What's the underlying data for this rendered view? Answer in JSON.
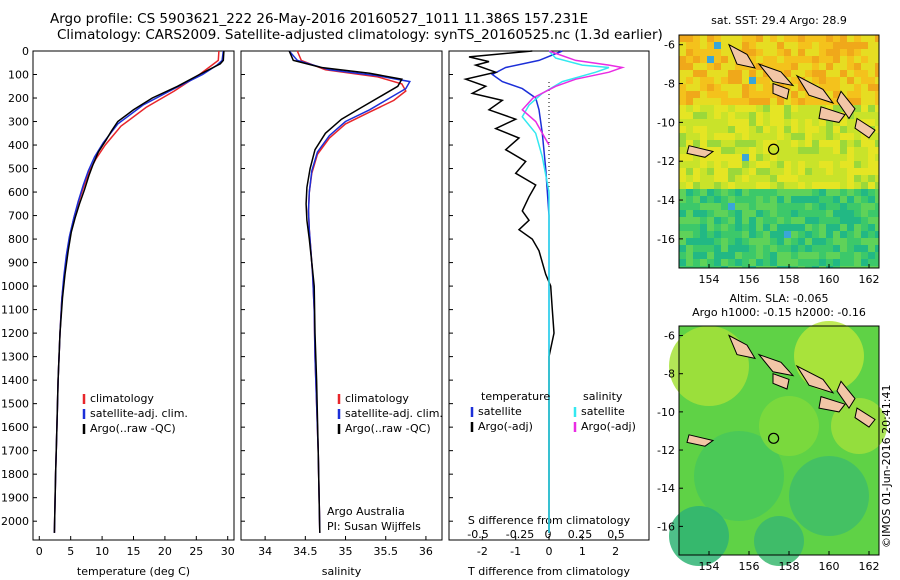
{
  "header": {
    "line1": "Argo profile: CS 5903621_222 26-May-2016 20160527_1011 11.386S 157.231E",
    "line2": "Climatology: CARS2009. Satellite-adjusted climatology: synTS_20160525.nc (1.3d earlier)"
  },
  "colors": {
    "climatology": "#e8262b",
    "satellite": "#1c2fd8",
    "argo": "#000000",
    "sat_salinity": "#33e8f0",
    "argo_salinity": "#e92ce3"
  },
  "chart_data": [
    {
      "type": "line",
      "title": "",
      "xlabel": "temperature (deg C)",
      "ylabel": "",
      "xlim": [
        -1,
        31
      ],
      "ylim": [
        2080,
        0
      ],
      "xticks": [
        0,
        5,
        10,
        15,
        20,
        25,
        30
      ],
      "yticks": [
        0,
        100,
        200,
        300,
        400,
        500,
        600,
        700,
        800,
        900,
        1000,
        1100,
        1200,
        1300,
        1400,
        1500,
        1600,
        1700,
        1800,
        1900,
        2000
      ],
      "legend": [
        "climatology",
        "satellite-adj. clim.",
        "Argo(..raw -QC)"
      ],
      "series": [
        {
          "name": "climatology",
          "points": [
            [
              28.6,
              0
            ],
            [
              28.5,
              40
            ],
            [
              27.5,
              60
            ],
            [
              25.5,
              100
            ],
            [
              21.5,
              170
            ],
            [
              17,
              240
            ],
            [
              13,
              320
            ],
            [
              10.5,
              400
            ],
            [
              9,
              460
            ],
            [
              8,
              510
            ],
            [
              7.3,
              560
            ],
            [
              6.4,
              630
            ],
            [
              5.6,
              700
            ],
            [
              4.9,
              780
            ],
            [
              4.4,
              860
            ],
            [
              4,
              950
            ],
            [
              3.6,
              1050
            ],
            [
              3.3,
              1200
            ],
            [
              3.0,
              1400
            ],
            [
              2.8,
              1600
            ],
            [
              2.6,
              1800
            ],
            [
              2.4,
              2050
            ]
          ]
        },
        {
          "name": "satellite-adj. clim.",
          "points": [
            [
              29.3,
              0
            ],
            [
              29.1,
              40
            ],
            [
              28.3,
              60
            ],
            [
              26,
              100
            ],
            [
              21.5,
              160
            ],
            [
              16.5,
              230
            ],
            [
              12.5,
              310
            ],
            [
              10.2,
              390
            ],
            [
              8.8,
              450
            ],
            [
              7.8,
              510
            ],
            [
              7,
              570
            ],
            [
              6.2,
              640
            ],
            [
              5.5,
              710
            ],
            [
              4.8,
              790
            ],
            [
              4.3,
              870
            ],
            [
              3.9,
              960
            ],
            [
              3.6,
              1050
            ],
            [
              3.3,
              1200
            ],
            [
              3.0,
              1400
            ],
            [
              2.8,
              1600
            ],
            [
              2.6,
              1800
            ],
            [
              2.4,
              2050
            ]
          ]
        },
        {
          "name": "Argo(..raw -QC)",
          "points": [
            [
              29.4,
              0
            ],
            [
              29.3,
              40
            ],
            [
              28.8,
              55
            ],
            [
              25.5,
              100
            ],
            [
              22,
              150
            ],
            [
              18,
              200
            ],
            [
              15,
              250
            ],
            [
              12.5,
              300
            ],
            [
              11.5,
              340
            ],
            [
              10.6,
              380
            ],
            [
              9.4,
              430
            ],
            [
              8.6,
              480
            ],
            [
              7.9,
              530
            ],
            [
              7.2,
              590
            ],
            [
              6.4,
              650
            ],
            [
              5.7,
              710
            ],
            [
              5.1,
              770
            ],
            [
              4.6,
              850
            ],
            [
              4.1,
              950
            ],
            [
              3.7,
              1050
            ],
            [
              3.3,
              1200
            ],
            [
              3.0,
              1400
            ],
            [
              2.8,
              1600
            ],
            [
              2.6,
              1800
            ],
            [
              2.4,
              2050
            ]
          ]
        }
      ]
    },
    {
      "type": "line",
      "title": "",
      "xlabel": "salinity",
      "ylabel": "",
      "xlim": [
        33.7,
        36.2
      ],
      "ylim": [
        2080,
        0
      ],
      "xticks": [
        34,
        34.5,
        35,
        35.5,
        36
      ],
      "legend": [
        "climatology",
        "satellite-adj. clim.",
        "Argo(..raw -QC)"
      ],
      "annotations": [
        "Argo Australia",
        "PI: Susan Wijffels"
      ],
      "series": [
        {
          "name": "climatology",
          "points": [
            [
              34.4,
              0
            ],
            [
              34.45,
              40
            ],
            [
              34.75,
              80
            ],
            [
              35.4,
              110
            ],
            [
              35.7,
              140
            ],
            [
              35.75,
              170
            ],
            [
              35.6,
              210
            ],
            [
              35.3,
              260
            ],
            [
              35.0,
              310
            ],
            [
              34.8,
              370
            ],
            [
              34.65,
              440
            ],
            [
              34.58,
              520
            ],
            [
              34.55,
              600
            ],
            [
              34.54,
              680
            ],
            [
              34.55,
              760
            ],
            [
              34.57,
              850
            ],
            [
              34.59,
              950
            ],
            [
              34.61,
              1100
            ],
            [
              34.62,
              1300
            ],
            [
              34.64,
              1500
            ],
            [
              34.66,
              1700
            ],
            [
              34.68,
              2050
            ]
          ]
        },
        {
          "name": "satellite-adj. clim.",
          "points": [
            [
              34.3,
              0
            ],
            [
              34.4,
              40
            ],
            [
              34.8,
              80
            ],
            [
              35.4,
              105
            ],
            [
              35.8,
              130
            ],
            [
              35.75,
              160
            ],
            [
              35.55,
              200
            ],
            [
              35.3,
              250
            ],
            [
              35.0,
              300
            ],
            [
              34.8,
              360
            ],
            [
              34.65,
              430
            ],
            [
              34.58,
              510
            ],
            [
              34.55,
              600
            ],
            [
              34.54,
              680
            ],
            [
              34.55,
              760
            ],
            [
              34.57,
              850
            ],
            [
              34.59,
              950
            ],
            [
              34.61,
              1100
            ],
            [
              34.62,
              1300
            ],
            [
              34.64,
              1500
            ],
            [
              34.66,
              1700
            ],
            [
              34.68,
              2050
            ]
          ]
        },
        {
          "name": "Argo(..raw -QC)",
          "points": [
            [
              34.3,
              0
            ],
            [
              34.35,
              40
            ],
            [
              34.7,
              70
            ],
            [
              35.3,
              95
            ],
            [
              35.7,
              120
            ],
            [
              35.65,
              150
            ],
            [
              35.45,
              190
            ],
            [
              35.2,
              240
            ],
            [
              34.95,
              290
            ],
            [
              34.75,
              350
            ],
            [
              34.62,
              420
            ],
            [
              34.56,
              500
            ],
            [
              34.52,
              580
            ],
            [
              34.51,
              650
            ],
            [
              34.52,
              720
            ],
            [
              34.55,
              800
            ],
            [
              34.58,
              900
            ],
            [
              34.61,
              1000
            ],
            [
              34.62,
              1200
            ],
            [
              34.64,
              1400
            ],
            [
              34.66,
              1700
            ],
            [
              34.68,
              2050
            ]
          ]
        }
      ]
    },
    {
      "type": "line",
      "title": "",
      "xlabel": "T difference from climatology",
      "xlabel_top": "S difference from climatology",
      "ylabel": "",
      "xlim": [
        -3,
        3
      ],
      "ylim": [
        2080,
        0
      ],
      "xticks": [
        -2,
        -1,
        0,
        1,
        2
      ],
      "xticks_top": [
        "-0.5",
        "-0.25",
        "0",
        "0.25",
        "0.5"
      ],
      "legend_groups": [
        {
          "heading": "temperature",
          "items": [
            "satellite",
            "Argo(-adj)"
          ]
        },
        {
          "heading": "salinity",
          "items": [
            "satellite",
            "Argo(-adj)"
          ]
        }
      ],
      "series": [
        {
          "name": "temperature satellite",
          "points": [
            [
              0.4,
              0
            ],
            [
              -0.3,
              40
            ],
            [
              -1.3,
              70
            ],
            [
              -1.7,
              100
            ],
            [
              -1.4,
              130
            ],
            [
              -0.8,
              160
            ],
            [
              -0.4,
              200
            ],
            [
              -0.3,
              250
            ],
            [
              -0.2,
              350
            ],
            [
              -0.1,
              500
            ],
            [
              0,
              700
            ],
            [
              0,
              900
            ],
            [
              0,
              2050
            ]
          ]
        },
        {
          "name": "temperature Argo(-adj)",
          "points": [
            [
              -0.5,
              0
            ],
            [
              -2.4,
              25
            ],
            [
              -1.8,
              45
            ],
            [
              -2.2,
              60
            ],
            [
              -1.6,
              90
            ],
            [
              -2.5,
              120
            ],
            [
              -1.9,
              150
            ],
            [
              -2.3,
              180
            ],
            [
              -1.4,
              210
            ],
            [
              -1.8,
              250
            ],
            [
              -1.0,
              290
            ],
            [
              -1.6,
              330
            ],
            [
              -0.9,
              370
            ],
            [
              -1.3,
              420
            ],
            [
              -0.7,
              470
            ],
            [
              -1.0,
              520
            ],
            [
              -0.4,
              570
            ],
            [
              -0.6,
              620
            ],
            [
              -0.8,
              680
            ],
            [
              -0.6,
              720
            ],
            [
              -0.9,
              760
            ],
            [
              -0.5,
              800
            ],
            [
              -0.3,
              850
            ],
            [
              -0.1,
              950
            ],
            [
              0.05,
              1000
            ],
            [
              0.1,
              1100
            ],
            [
              0.15,
              1200
            ],
            [
              0,
              1300
            ],
            [
              0,
              2050
            ]
          ]
        },
        {
          "name": "salinity satellite",
          "points": [
            [
              0,
              0
            ],
            [
              0.05,
              30
            ],
            [
              0.25,
              60
            ],
            [
              0.45,
              70
            ],
            [
              0.35,
              90
            ],
            [
              0.1,
              130
            ],
            [
              -0.05,
              180
            ],
            [
              -0.15,
              230
            ],
            [
              -0.2,
              280
            ],
            [
              -0.1,
              350
            ],
            [
              -0.05,
              450
            ],
            [
              0,
              600
            ],
            [
              0,
              2050
            ]
          ]
        },
        {
          "name": "salinity Argo(-adj)",
          "points": [
            [
              0,
              0
            ],
            [
              0.2,
              40
            ],
            [
              0.45,
              60
            ],
            [
              0.55,
              70
            ],
            [
              0.45,
              90
            ],
            [
              0.2,
              120
            ],
            [
              0.05,
              150
            ],
            [
              -0.12,
              200
            ],
            [
              -0.2,
              250
            ],
            [
              -0.1,
              300
            ],
            [
              -0.05,
              350
            ],
            [
              0,
              400
            ]
          ]
        }
      ]
    },
    {
      "type": "heatmap",
      "title": "sat. SST: 29.4 Argo: 28.9",
      "xlim": [
        152.5,
        162.5
      ],
      "ylim": [
        -17.5,
        -5.5
      ],
      "xticks": [
        154,
        156,
        158,
        160,
        162
      ],
      "yticks": [
        -6,
        -8,
        -10,
        -12,
        -14,
        -16
      ],
      "argo_position": [
        157.231,
        -11.386
      ]
    },
    {
      "type": "heatmap",
      "title": "Altim. SLA: -0.065",
      "subtitle": "Argo h1000: -0.15 h2000: -0.16",
      "xlim": [
        152.5,
        162.5
      ],
      "ylim": [
        -17.5,
        -5.5
      ],
      "xticks": [
        154,
        156,
        158,
        160,
        162
      ],
      "yticks": [
        -6,
        -8,
        -10,
        -12,
        -14,
        -16
      ],
      "argo_position": [
        157.231,
        -11.386
      ]
    }
  ],
  "footer": {
    "credit": "©IMOS 01-Jun-2016 20:41:41"
  }
}
